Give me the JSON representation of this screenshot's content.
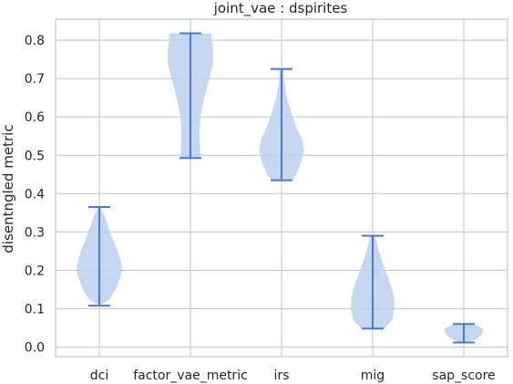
{
  "chart_data": {
    "type": "violin",
    "title": "joint_vae : dspirites",
    "ylabel": "disentngled metric",
    "ylim": [
      -0.025,
      0.855
    ],
    "yticks": [
      "0.0",
      "0.1",
      "0.2",
      "0.3",
      "0.4",
      "0.5",
      "0.6",
      "0.7",
      "0.8"
    ],
    "grid": true,
    "colors": {
      "body": "#bcd0ef",
      "line": "#4a78d2",
      "grid": "#cccccc"
    },
    "categories": [
      "dci",
      "factor_vae_metric",
      "irs",
      "mig",
      "sap_score"
    ],
    "series": [
      {
        "min": 0.108,
        "max": 0.365,
        "profile": [
          [
            0.108,
            0.02
          ],
          [
            0.125,
            0.45
          ],
          [
            0.15,
            0.68
          ],
          [
            0.18,
            0.88
          ],
          [
            0.2,
            0.96
          ],
          [
            0.22,
            0.92
          ],
          [
            0.25,
            0.78
          ],
          [
            0.28,
            0.58
          ],
          [
            0.31,
            0.4
          ],
          [
            0.34,
            0.24
          ],
          [
            0.365,
            0.05
          ]
        ]
      },
      {
        "min": 0.493,
        "max": 0.818,
        "profile": [
          [
            0.493,
            0.4
          ],
          [
            0.5,
            0.42
          ],
          [
            0.55,
            0.38
          ],
          [
            0.6,
            0.42
          ],
          [
            0.65,
            0.58
          ],
          [
            0.7,
            0.8
          ],
          [
            0.74,
            0.96
          ],
          [
            0.78,
            0.95
          ],
          [
            0.8,
            0.9
          ],
          [
            0.818,
            0.88
          ]
        ]
      },
      {
        "min": 0.435,
        "max": 0.725,
        "profile": [
          [
            0.435,
            0.4
          ],
          [
            0.45,
            0.62
          ],
          [
            0.48,
            0.82
          ],
          [
            0.51,
            0.95
          ],
          [
            0.54,
            0.88
          ],
          [
            0.57,
            0.65
          ],
          [
            0.61,
            0.42
          ],
          [
            0.65,
            0.22
          ],
          [
            0.69,
            0.12
          ],
          [
            0.725,
            0.08
          ]
        ]
      },
      {
        "min": 0.048,
        "max": 0.29,
        "profile": [
          [
            0.048,
            0.5
          ],
          [
            0.07,
            0.82
          ],
          [
            0.1,
            0.92
          ],
          [
            0.13,
            0.9
          ],
          [
            0.16,
            0.78
          ],
          [
            0.19,
            0.6
          ],
          [
            0.22,
            0.42
          ],
          [
            0.25,
            0.26
          ],
          [
            0.27,
            0.18
          ],
          [
            0.29,
            0.1
          ]
        ]
      },
      {
        "min": 0.012,
        "max": 0.06,
        "profile": [
          [
            0.012,
            0.16
          ],
          [
            0.02,
            0.5
          ],
          [
            0.03,
            0.7
          ],
          [
            0.04,
            0.82
          ],
          [
            0.048,
            0.8
          ],
          [
            0.055,
            0.6
          ],
          [
            0.06,
            0.38
          ]
        ]
      }
    ]
  }
}
